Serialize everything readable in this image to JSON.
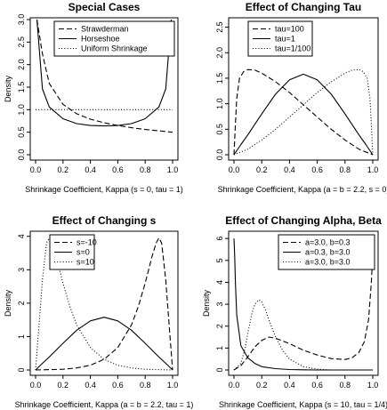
{
  "chart_data": [
    {
      "type": "line",
      "title": "Special Cases",
      "xlabel": "Shrinkage Coefficient, Kappa (s = 0, tau = 1)",
      "ylabel": "Density",
      "xlim": [
        0,
        1
      ],
      "ylim": [
        0,
        3
      ],
      "xticks": [
        "0.0",
        "0.2",
        "0.4",
        "0.6",
        "0.8",
        "1.0"
      ],
      "yticks": [
        "0.0",
        "0.5",
        "1.0",
        "1.5",
        "2.0",
        "2.5",
        "3.0"
      ],
      "grid": false,
      "legend_position": "top-right",
      "series": [
        {
          "name": "Strawderman",
          "style": "dashed",
          "x": [
            0.01,
            0.05,
            0.1,
            0.2,
            0.3,
            0.4,
            0.5,
            0.6,
            0.7,
            0.8,
            0.9,
            1.0
          ],
          "y": [
            3.0,
            2.24,
            1.58,
            1.12,
            0.91,
            0.79,
            0.71,
            0.65,
            0.6,
            0.56,
            0.53,
            0.5
          ]
        },
        {
          "name": "Horseshoe",
          "style": "solid",
          "x": [
            0.01,
            0.05,
            0.1,
            0.2,
            0.3,
            0.4,
            0.5,
            0.6,
            0.7,
            0.8,
            0.9,
            0.95,
            0.99
          ],
          "y": [
            3.0,
            1.46,
            1.06,
            0.8,
            0.69,
            0.65,
            0.64,
            0.65,
            0.69,
            0.8,
            1.06,
            1.46,
            3.0
          ]
        },
        {
          "name": "Uniform Shrinkage",
          "style": "dotted",
          "x": [
            0,
            1
          ],
          "y": [
            1,
            1
          ]
        }
      ]
    },
    {
      "type": "line",
      "title": "Effect of Changing Tau",
      "xlabel": "Shrinkage Coefficient, Kappa (a = b = 2.2, s = 0)",
      "ylabel": "",
      "xlim": [
        0,
        1
      ],
      "ylim": [
        0,
        2
      ],
      "xticks": [
        "0.0",
        "0.2",
        "0.4",
        "0.6",
        "0.8",
        "1.0"
      ],
      "yticks": [
        "0.0",
        "0.5",
        "1.0",
        "1.5",
        "2.0",
        "2.5"
      ],
      "grid": false,
      "legend_position": "top-left",
      "series": [
        {
          "name": "tau=100",
          "style": "dashed",
          "x": [
            0,
            0.01,
            0.02,
            0.04,
            0.07,
            0.1,
            0.15,
            0.2,
            0.3,
            0.4,
            0.5,
            0.6,
            0.7,
            0.8,
            0.9,
            1.0
          ],
          "y": [
            0,
            0.6,
            1.1,
            1.5,
            1.63,
            1.67,
            1.66,
            1.6,
            1.43,
            1.22,
            0.98,
            0.74,
            0.5,
            0.29,
            0.11,
            0
          ]
        },
        {
          "name": "tau=1",
          "style": "solid",
          "x": [
            0,
            0.05,
            0.1,
            0.2,
            0.3,
            0.4,
            0.5,
            0.6,
            0.7,
            0.8,
            0.9,
            0.95,
            1.0
          ],
          "y": [
            0,
            0.2,
            0.39,
            0.8,
            1.19,
            1.47,
            1.58,
            1.47,
            1.19,
            0.8,
            0.39,
            0.2,
            0
          ]
        },
        {
          "name": "tau=1/100",
          "style": "dotted",
          "x": [
            0,
            0.1,
            0.2,
            0.3,
            0.4,
            0.5,
            0.6,
            0.7,
            0.8,
            0.85,
            0.9,
            0.93,
            0.96,
            0.98,
            0.99,
            1.0
          ],
          "y": [
            0,
            0.11,
            0.29,
            0.5,
            0.74,
            0.98,
            1.22,
            1.43,
            1.6,
            1.66,
            1.67,
            1.63,
            1.5,
            1.1,
            0.6,
            0
          ]
        }
      ]
    },
    {
      "type": "line",
      "title": "Effect of Changing s",
      "xlabel": "Shrinkage Coefficient, Kappa (a = b = 2.2, tau = 1)",
      "ylabel": "Density",
      "xlim": [
        0,
        1
      ],
      "ylim": [
        0,
        4
      ],
      "xticks": [
        "0.0",
        "0.2",
        "0.4",
        "0.6",
        "0.8",
        "1.0"
      ],
      "yticks": [
        "0",
        "1",
        "2",
        "3",
        "4"
      ],
      "grid": false,
      "legend_position": "top-left",
      "series": [
        {
          "name": "s=-10",
          "style": "dashed",
          "x": [
            0,
            0.2,
            0.3,
            0.4,
            0.5,
            0.6,
            0.7,
            0.75,
            0.8,
            0.85,
            0.88,
            0.9,
            0.92,
            0.95,
            0.97,
            1.0
          ],
          "y": [
            0,
            0.02,
            0.06,
            0.14,
            0.32,
            0.67,
            1.35,
            1.9,
            2.6,
            3.4,
            3.8,
            3.95,
            3.8,
            2.7,
            1.6,
            0
          ]
        },
        {
          "name": "s=0",
          "style": "solid",
          "x": [
            0,
            0.05,
            0.1,
            0.2,
            0.3,
            0.4,
            0.5,
            0.6,
            0.7,
            0.8,
            0.9,
            0.95,
            1.0
          ],
          "y": [
            0,
            0.2,
            0.39,
            0.8,
            1.19,
            1.47,
            1.58,
            1.47,
            1.19,
            0.8,
            0.39,
            0.2,
            0
          ]
        },
        {
          "name": "s=10",
          "style": "dotted",
          "x": [
            0,
            0.03,
            0.05,
            0.08,
            0.1,
            0.12,
            0.15,
            0.2,
            0.25,
            0.3,
            0.4,
            0.5,
            0.6,
            0.7,
            0.8,
            1.0
          ],
          "y": [
            0,
            1.6,
            2.7,
            3.8,
            3.95,
            3.8,
            3.4,
            2.6,
            1.9,
            1.35,
            0.67,
            0.32,
            0.14,
            0.06,
            0.02,
            0
          ]
        }
      ]
    },
    {
      "type": "line",
      "title": "Effect of Changing Alpha, Beta",
      "xlabel": "Shrinkage Coefficient, Kappa (s = 10, tau = 1/4)",
      "ylabel": "Density",
      "xlim": [
        0,
        1
      ],
      "ylim": [
        0,
        6
      ],
      "xticks": [
        "0.0",
        "0.2",
        "0.4",
        "0.6",
        "0.8",
        "1.0"
      ],
      "yticks": [
        "0",
        "1",
        "2",
        "3",
        "4",
        "5",
        "6"
      ],
      "grid": false,
      "legend_position": "top-right",
      "series": [
        {
          "name": "a=3.0, b=0.3",
          "style": "dashed",
          "x": [
            0,
            0.05,
            0.1,
            0.15,
            0.2,
            0.25,
            0.3,
            0.4,
            0.5,
            0.6,
            0.7,
            0.8,
            0.85,
            0.9,
            0.94,
            0.97,
            0.99,
            1.0
          ],
          "y": [
            0,
            0.2,
            0.6,
            1.05,
            1.35,
            1.5,
            1.45,
            1.2,
            0.9,
            0.68,
            0.52,
            0.48,
            0.55,
            0.8,
            1.3,
            2.3,
            4.0,
            5.3
          ]
        },
        {
          "name": "a=0.3, b=3.0",
          "style": "solid",
          "x": [
            0,
            0.005,
            0.01,
            0.02,
            0.05,
            0.1,
            0.15,
            0.2,
            0.3,
            0.4,
            0.5,
            0.6,
            0.8,
            1.0
          ],
          "y": [
            6.0,
            5.2,
            4.0,
            2.5,
            1.1,
            0.55,
            0.3,
            0.15,
            0.06,
            0.02,
            0.01,
            0.0,
            0.0,
            0.0
          ]
        },
        {
          "name": "a=3.0, b=3.0",
          "style": "dotted",
          "x": [
            0,
            0.05,
            0.08,
            0.1,
            0.13,
            0.15,
            0.18,
            0.2,
            0.23,
            0.25,
            0.3,
            0.35,
            0.4,
            0.5,
            0.6,
            0.7,
            1.0
          ],
          "y": [
            0,
            0.3,
            1.0,
            1.7,
            2.6,
            3.0,
            3.2,
            3.1,
            2.7,
            2.3,
            1.5,
            0.9,
            0.5,
            0.15,
            0.04,
            0.0,
            0.0
          ]
        }
      ]
    }
  ]
}
